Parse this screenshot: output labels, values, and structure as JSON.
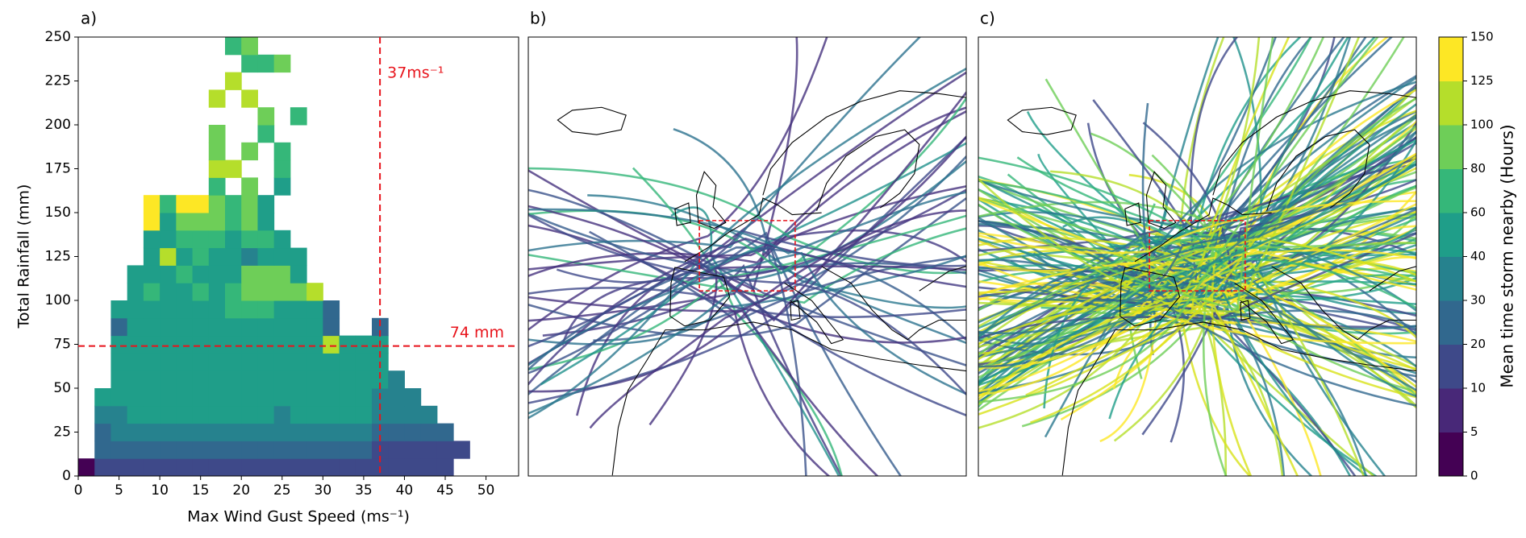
{
  "chart_data": {
    "type": "heatmap",
    "panel_label": "a)",
    "xlabel": "Max Wind Gust Speed (ms⁻¹)",
    "ylabel": "Total Rainfall (mm)",
    "xlim": [
      0,
      54
    ],
    "ylim": [
      0,
      250
    ],
    "xticks": [
      0,
      5,
      10,
      15,
      20,
      25,
      30,
      35,
      40,
      45,
      50
    ],
    "yticks": [
      0,
      25,
      50,
      75,
      100,
      125,
      150,
      175,
      200,
      225,
      250
    ],
    "xbin_width": 2,
    "ybin_height": 10,
    "rows": [
      {
        "y": 0,
        "x": 0,
        "values": [
          3,
          15,
          15,
          15,
          15,
          15,
          15,
          15,
          15,
          15,
          15,
          15,
          15,
          15,
          15,
          15,
          15,
          15,
          15,
          15,
          15,
          15,
          15
        ]
      },
      {
        "y": 10,
        "x": 2,
        "values": [
          20,
          25,
          25,
          25,
          25,
          25,
          25,
          25,
          25,
          25,
          25,
          25,
          25,
          25,
          25,
          25,
          25,
          15,
          15,
          15,
          15,
          15,
          15
        ]
      },
      {
        "y": 20,
        "x": 2,
        "values": [
          25,
          35,
          35,
          35,
          35,
          35,
          35,
          35,
          35,
          35,
          35,
          35,
          35,
          35,
          35,
          35,
          35,
          25,
          25,
          25,
          25,
          25
        ]
      },
      {
        "y": 30,
        "x": 2,
        "values": [
          35,
          35,
          45,
          45,
          45,
          45,
          45,
          45,
          45,
          45,
          45,
          35,
          45,
          45,
          45,
          45,
          45,
          35,
          35,
          35,
          35
        ]
      },
      {
        "y": 40,
        "x": 2,
        "values": [
          45,
          45,
          45,
          45,
          45,
          45,
          45,
          45,
          45,
          45,
          45,
          45,
          45,
          45,
          45,
          45,
          45,
          35,
          35,
          35
        ]
      },
      {
        "y": 50,
        "x": 4,
        "values": [
          50,
          50,
          50,
          50,
          50,
          50,
          50,
          50,
          50,
          50,
          50,
          50,
          50,
          50,
          50,
          50,
          50,
          35
        ]
      },
      {
        "y": 60,
        "x": 4,
        "values": [
          50,
          50,
          50,
          50,
          50,
          50,
          50,
          50,
          50,
          50,
          50,
          50,
          50,
          50,
          50,
          50,
          45
        ]
      },
      {
        "y": 70,
        "x": 4,
        "values": [
          45,
          50,
          50,
          50,
          50,
          50,
          50,
          50,
          50,
          50,
          50,
          50,
          50,
          110,
          50,
          50,
          50
        ]
      },
      {
        "y": 80,
        "x": 4,
        "values": [
          25,
          50,
          50,
          50,
          50,
          50,
          50,
          50,
          50,
          50,
          50,
          50,
          50,
          25,
          null,
          null,
          25
        ]
      },
      {
        "y": 90,
        "x": 4,
        "values": [
          50,
          50,
          50,
          55,
          55,
          50,
          50,
          70,
          70,
          70,
          55,
          50,
          50,
          25
        ]
      },
      {
        "y": 100,
        "x": 6,
        "values": [
          55,
          70,
          55,
          55,
          70,
          55,
          70,
          90,
          90,
          90,
          90,
          110
        ]
      },
      {
        "y": 110,
        "x": 6,
        "values": [
          55,
          55,
          55,
          70,
          55,
          55,
          55,
          90,
          90,
          90,
          55
        ]
      },
      {
        "y": 120,
        "x": 8,
        "values": [
          55,
          110,
          55,
          70,
          55,
          55,
          35,
          45,
          55,
          55
        ]
      },
      {
        "y": 130,
        "x": 8,
        "values": [
          55,
          55,
          70,
          70,
          70,
          55,
          70,
          70,
          55
        ]
      },
      {
        "y": 140,
        "x": 8,
        "values": [
          130,
          55,
          90,
          90,
          90,
          70,
          90,
          55
        ]
      },
      {
        "y": 150,
        "x": 8,
        "values": [
          130,
          70,
          130,
          130,
          90,
          70,
          90,
          45
        ]
      },
      {
        "y": 160,
        "x": 16,
        "values": [
          70,
          null,
          80,
          null,
          45
        ]
      },
      {
        "y": 170,
        "x": 16,
        "values": [
          110,
          110,
          null,
          null,
          70
        ]
      },
      {
        "y": 180,
        "x": 16,
        "values": [
          90,
          null,
          90,
          null,
          70
        ]
      },
      {
        "y": 190,
        "x": 16,
        "values": [
          90,
          null,
          null,
          70
        ]
      },
      {
        "y": 200,
        "x": 16,
        "values": [
          null,
          null,
          null,
          80,
          null,
          70
        ]
      },
      {
        "y": 210,
        "x": 16,
        "values": [
          110,
          null,
          110
        ]
      },
      {
        "y": 220,
        "x": 16,
        "values": [
          null,
          110
        ]
      },
      {
        "y": 230,
        "x": 18,
        "values": [
          null,
          70,
          70,
          90
        ]
      },
      {
        "y": 240,
        "x": 18,
        "values": [
          70,
          90
        ]
      }
    ],
    "vline": 37,
    "vline_label": "37ms⁻¹",
    "hline": 74,
    "hline_label": "74 mm",
    "line_color": "#e8141c",
    "colorbar": {
      "label": "Mean time storm nearby (Hours)",
      "boundaries": [
        0,
        5,
        10,
        20,
        30,
        40,
        60,
        80,
        100,
        125,
        150
      ],
      "colors": [
        "#440154",
        "#482878",
        "#3e4989",
        "#31688e",
        "#26828e",
        "#1f9e89",
        "#35b779",
        "#6ece58",
        "#b5de2b",
        "#fde725"
      ]
    }
  },
  "maps": {
    "panels": [
      {
        "label": "b)"
      },
      {
        "label": "c)"
      }
    ]
  }
}
